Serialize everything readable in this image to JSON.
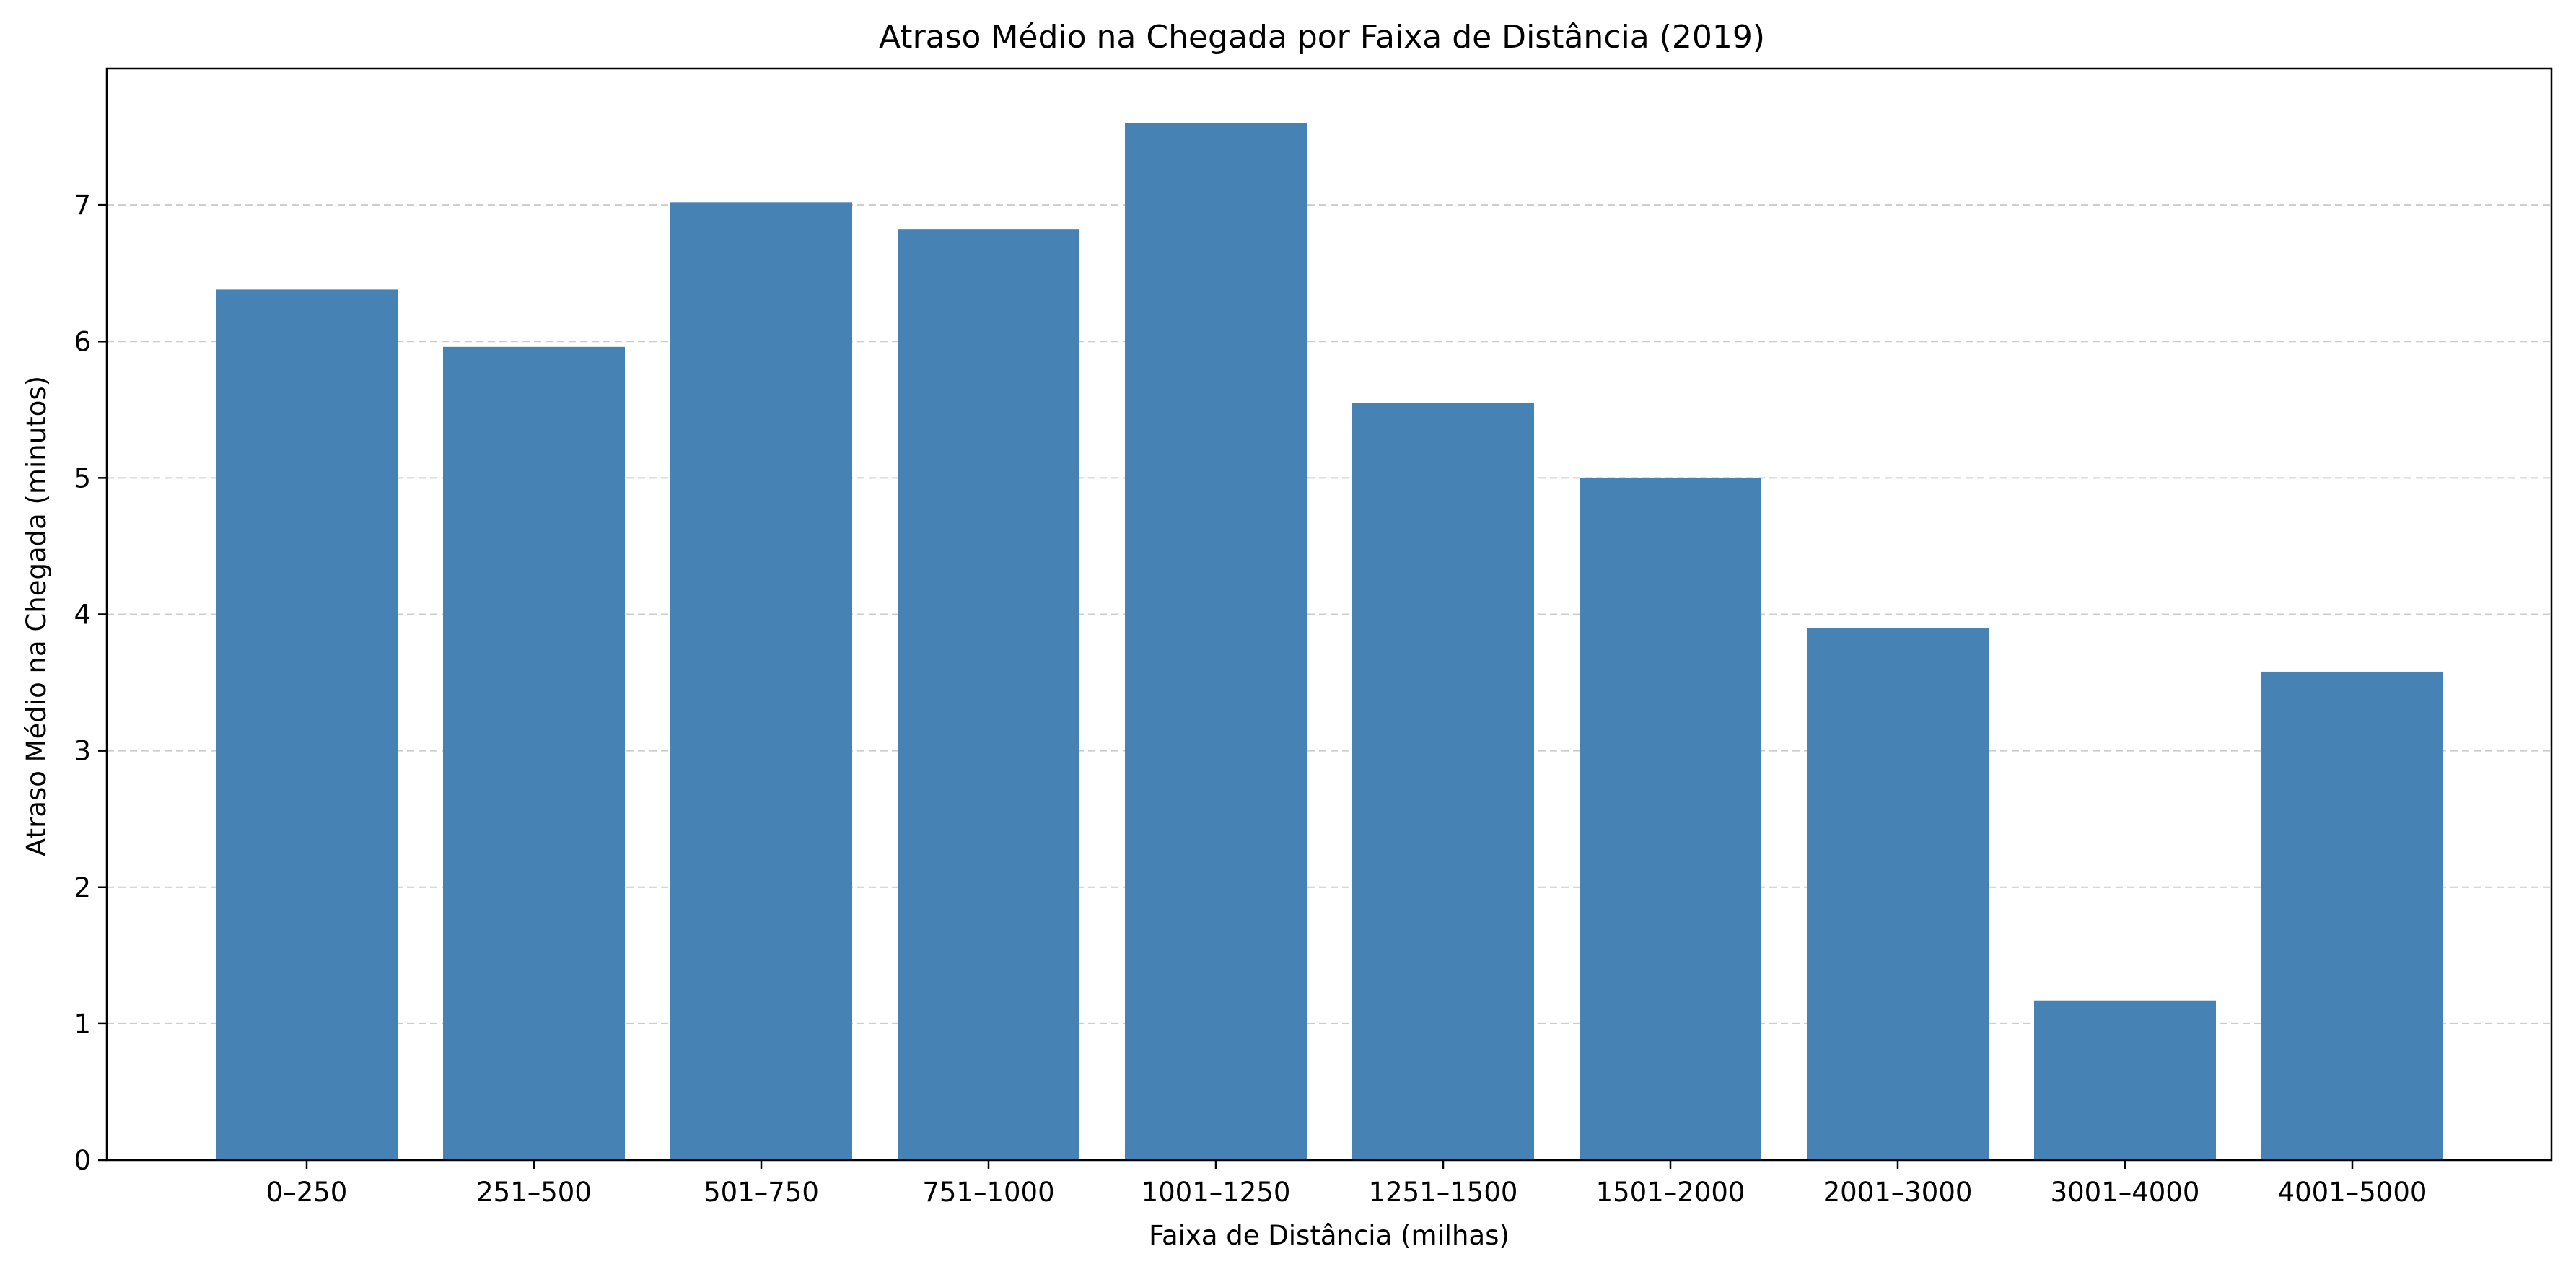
{
  "chart_data": {
    "type": "bar",
    "title": "Atraso Médio na Chegada por Faixa de Distância (2019)",
    "xlabel": "Faixa de Distância (milhas)",
    "ylabel": "Atraso Médio na Chegada (minutos)",
    "categories": [
      "0–250",
      "251–500",
      "501–750",
      "751–1000",
      "1001–1250",
      "1251–1500",
      "1501–2000",
      "2001–3000",
      "3001–4000",
      "4001–5000"
    ],
    "values": [
      6.38,
      5.96,
      7.02,
      6.82,
      7.6,
      5.55,
      5.0,
      3.9,
      1.17,
      3.58
    ],
    "ylim": [
      0,
      8
    ],
    "yticks": [
      0,
      1,
      2,
      3,
      4,
      5,
      6,
      7
    ],
    "grid": "y-dashed",
    "legend": "none",
    "colors": {
      "bar": "#4682b4",
      "grid": "#cccccc",
      "axes": "#000000"
    }
  }
}
